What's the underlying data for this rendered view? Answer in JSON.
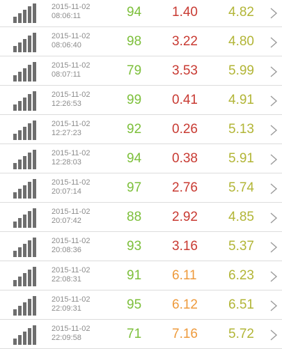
{
  "colors": {
    "green": "#7cbf3a",
    "red": "#c83a32",
    "orange": "#ee9a3c",
    "olive": "#b2b536",
    "signal": "#6e6e6e",
    "divider": "#dcdcdc",
    "date_text": "#8c8c8c",
    "chevron": "#9a9a9a"
  },
  "icons": {
    "signal": "signal-strength-icon",
    "chevron": "chevron-right-icon"
  },
  "rows": [
    {
      "date": "2015-11-02",
      "time": "08:06:11",
      "v1": "94",
      "v2": "1.40",
      "v2_color": "red",
      "v3": "4.82"
    },
    {
      "date": "2015-11-02",
      "time": "08:06:40",
      "v1": "98",
      "v2": "3.22",
      "v2_color": "red",
      "v3": "4.80"
    },
    {
      "date": "2015-11-02",
      "time": "08:07:11",
      "v1": "79",
      "v2": "3.53",
      "v2_color": "red",
      "v3": "5.99"
    },
    {
      "date": "2015-11-02",
      "time": "12:26:53",
      "v1": "99",
      "v2": "0.41",
      "v2_color": "red",
      "v3": "4.91"
    },
    {
      "date": "2015-11-02",
      "time": "12:27:23",
      "v1": "92",
      "v2": "0.26",
      "v2_color": "red",
      "v3": "5.13"
    },
    {
      "date": "2015-11-02",
      "time": "12:28:03",
      "v1": "94",
      "v2": "0.38",
      "v2_color": "red",
      "v3": "5.91"
    },
    {
      "date": "2015-11-02",
      "time": "20:07:14",
      "v1": "97",
      "v2": "2.76",
      "v2_color": "red",
      "v3": "5.74"
    },
    {
      "date": "2015-11-02",
      "time": "20:07:42",
      "v1": "88",
      "v2": "2.92",
      "v2_color": "red",
      "v3": "4.85"
    },
    {
      "date": "2015-11-02",
      "time": "20:08:36",
      "v1": "93",
      "v2": "3.16",
      "v2_color": "red",
      "v3": "5.37"
    },
    {
      "date": "2015-11-02",
      "time": "22:08:31",
      "v1": "91",
      "v2": "6.11",
      "v2_color": "orange",
      "v3": "6.23"
    },
    {
      "date": "2015-11-02",
      "time": "22:09:31",
      "v1": "95",
      "v2": "6.12",
      "v2_color": "orange",
      "v3": "6.51"
    },
    {
      "date": "2015-11-02",
      "time": "22:09:58",
      "v1": "71",
      "v2": "7.16",
      "v2_color": "orange",
      "v3": "5.72"
    }
  ]
}
